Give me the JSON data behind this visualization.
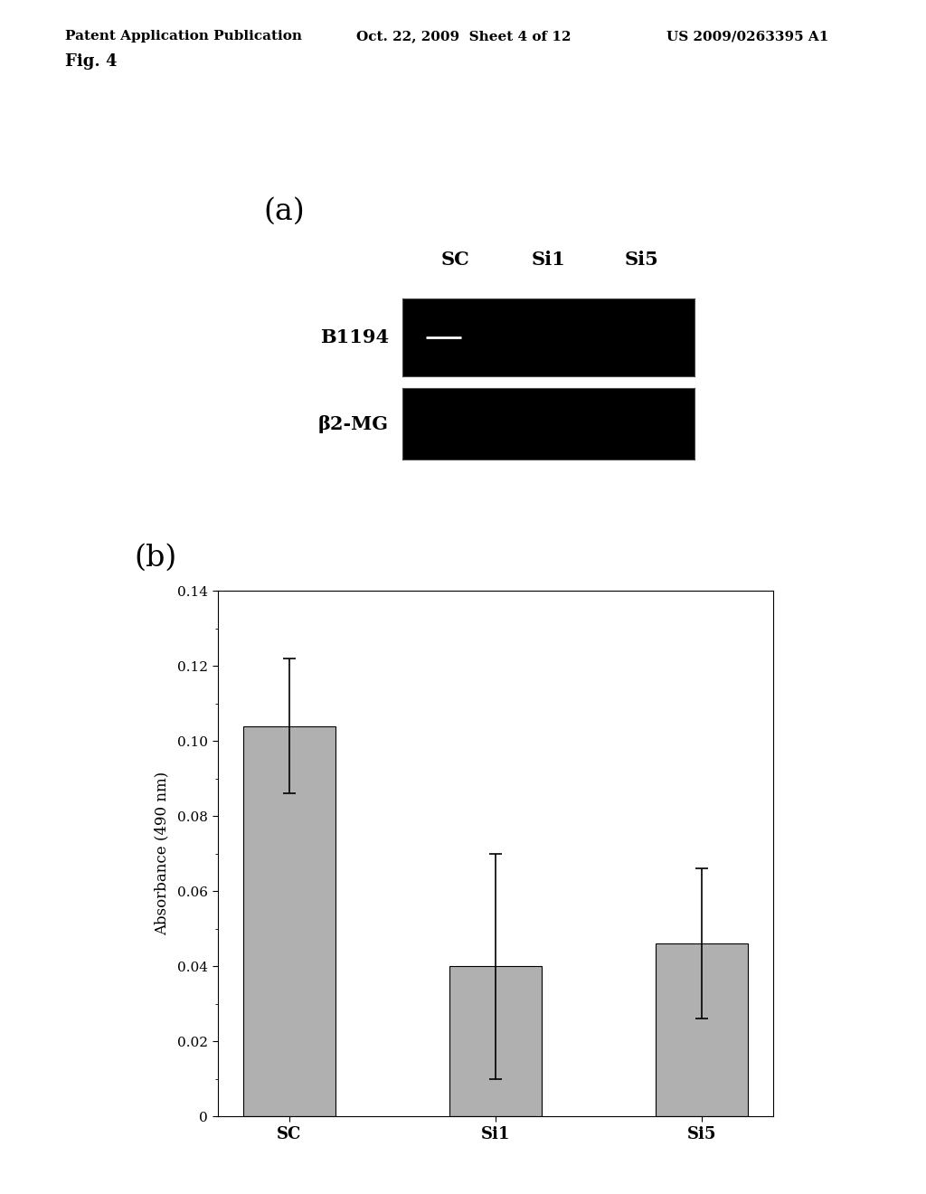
{
  "header_left": "Patent Application Publication",
  "header_mid": "Oct. 22, 2009  Sheet 4 of 12",
  "header_right": "US 2009/0263395 A1",
  "fig_label": "Fig. 4",
  "panel_a_label": "(a)",
  "panel_b_label": "(b)",
  "gel_columns": [
    "SC",
    "Si1",
    "Si5"
  ],
  "gel_row1_label": "B1194",
  "gel_row2_label": "β2-MG",
  "gel_bg_color": "#000000",
  "bar_categories": [
    "SC",
    "Si1",
    "Si5"
  ],
  "bar_values": [
    0.104,
    0.04,
    0.046
  ],
  "bar_errors": [
    0.018,
    0.03,
    0.02
  ],
  "bar_color": "#b0b0b0",
  "bar_edge_color": "#000000",
  "ylabel": "Absorbance (490 nm)",
  "ylim": [
    0,
    0.14
  ],
  "yticks": [
    0,
    0.02,
    0.04,
    0.06,
    0.08,
    0.1,
    0.12,
    0.14
  ],
  "background_color": "#ffffff",
  "text_color": "#000000",
  "header_fontsize": 11,
  "fig_label_fontsize": 13,
  "panel_label_fontsize": 24,
  "gel_label_fontsize": 15,
  "gel_col_fontsize": 15,
  "bar_xlabel_fontsize": 13,
  "bar_ylabel_fontsize": 12
}
